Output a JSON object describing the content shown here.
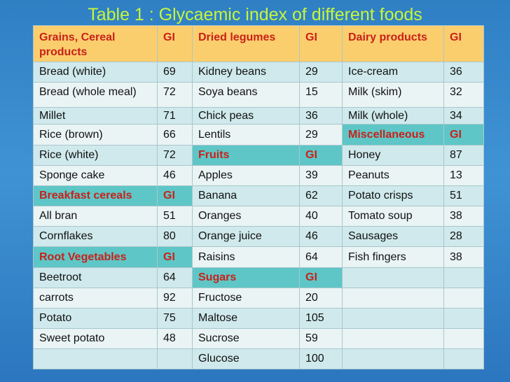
{
  "title": "Table 1 : Glycaemic index of different  foods",
  "headers": [
    "Grains, Cereal products",
    "GI",
    "Dried legumes",
    "GI",
    "Dairy products",
    "GI"
  ],
  "rows": [
    [
      {
        "t": "Bread (white)"
      },
      {
        "t": "69"
      },
      {
        "t": "Kidney beans"
      },
      {
        "t": "29"
      },
      {
        "t": "Ice-cream"
      },
      {
        "t": "36"
      }
    ],
    [
      {
        "t": "Bread (whole meal)"
      },
      {
        "t": "72"
      },
      {
        "t": "Soya beans"
      },
      {
        "t": "15"
      },
      {
        "t": "Milk (skim)"
      },
      {
        "t": "32"
      }
    ],
    [
      {
        "t": "Millet"
      },
      {
        "t": "71"
      },
      {
        "t": "Chick peas"
      },
      {
        "t": "36"
      },
      {
        "t": "Milk (whole)"
      },
      {
        "t": "34"
      }
    ],
    [
      {
        "t": "Rice (brown)"
      },
      {
        "t": "66"
      },
      {
        "t": "Lentils"
      },
      {
        "t": "29"
      },
      {
        "t": "Miscellaneous",
        "h": 1
      },
      {
        "t": "GI",
        "h": 1
      }
    ],
    [
      {
        "t": "Rice (white)"
      },
      {
        "t": "72"
      },
      {
        "t": "Fruits",
        "h": 1
      },
      {
        "t": "GI",
        "h": 1
      },
      {
        "t": "Honey"
      },
      {
        "t": "87"
      }
    ],
    [
      {
        "t": "Sponge cake"
      },
      {
        "t": "46"
      },
      {
        "t": "Apples"
      },
      {
        "t": "39"
      },
      {
        "t": "Peanuts"
      },
      {
        "t": "13"
      }
    ],
    [
      {
        "t": "Breakfast cereals",
        "h": 1
      },
      {
        "t": "GI",
        "h": 1
      },
      {
        "t": "Banana"
      },
      {
        "t": "62"
      },
      {
        "t": "Potato crisps"
      },
      {
        "t": "51"
      }
    ],
    [
      {
        "t": "All bran"
      },
      {
        "t": "51"
      },
      {
        "t": "Oranges"
      },
      {
        "t": "40"
      },
      {
        "t": "Tomato soup"
      },
      {
        "t": "38"
      }
    ],
    [
      {
        "t": "Cornflakes"
      },
      {
        "t": "80"
      },
      {
        "t": "Orange juice"
      },
      {
        "t": "46"
      },
      {
        "t": "Sausages"
      },
      {
        "t": "28"
      }
    ],
    [
      {
        "t": "Root Vegetables",
        "h": 1
      },
      {
        "t": "GI",
        "h": 1
      },
      {
        "t": "Raisins"
      },
      {
        "t": "64"
      },
      {
        "t": "Fish fingers"
      },
      {
        "t": "38"
      }
    ],
    [
      {
        "t": "Beetroot"
      },
      {
        "t": "64"
      },
      {
        "t": "Sugars",
        "h": 1
      },
      {
        "t": "GI",
        "h": 1
      },
      {
        "t": ""
      },
      {
        "t": ""
      }
    ],
    [
      {
        "t": "carrots"
      },
      {
        "t": "92"
      },
      {
        "t": "Fructose"
      },
      {
        "t": "20"
      },
      {
        "t": ""
      },
      {
        "t": ""
      }
    ],
    [
      {
        "t": "Potato"
      },
      {
        "t": "75"
      },
      {
        "t": "Maltose"
      },
      {
        "t": "105"
      },
      {
        "t": ""
      },
      {
        "t": ""
      }
    ],
    [
      {
        "t": "Sweet potato"
      },
      {
        "t": "48"
      },
      {
        "t": "Sucrose"
      },
      {
        "t": "59"
      },
      {
        "t": ""
      },
      {
        "t": ""
      }
    ],
    [
      {
        "t": ""
      },
      {
        "t": ""
      },
      {
        "t": "Glucose"
      },
      {
        "t": "100"
      },
      {
        "t": ""
      },
      {
        "t": ""
      }
    ]
  ]
}
